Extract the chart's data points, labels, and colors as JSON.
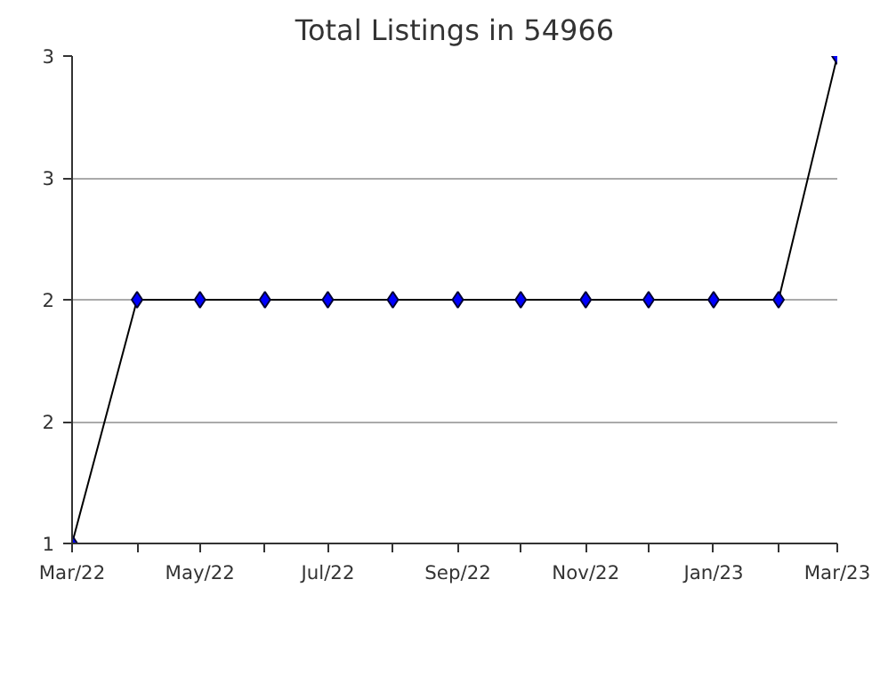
{
  "chart_data": {
    "type": "line",
    "title": "Total Listings in 54966",
    "x": [
      "2022-03",
      "2022-04",
      "2022-05",
      "2022-06",
      "2022-07",
      "2022-08",
      "2022-09",
      "2022-10",
      "2022-11",
      "2022-12",
      "2023-01",
      "2023-02",
      "2023-03"
    ],
    "series": [
      {
        "color": "#0000ff",
        "values": [
          1,
          2,
          2,
          2,
          2,
          2,
          2,
          2,
          2,
          2,
          2,
          2,
          3
        ]
      }
    ],
    "xlim": [
      "2022-03",
      "2023-03"
    ],
    "xticks": [
      {
        "value": "2022-03",
        "label": "Mar/22"
      },
      {
        "value": "2022-04",
        "label": null
      },
      {
        "value": "2022-05",
        "label": "May/22"
      },
      {
        "value": "2022-06",
        "label": null
      },
      {
        "value": "2022-07",
        "label": "Jul/22"
      },
      {
        "value": "2022-08",
        "label": null
      },
      {
        "value": "2022-09",
        "label": "Sep/22"
      },
      {
        "value": "2022-10",
        "label": null
      },
      {
        "value": "2022-11",
        "label": "Nov/22"
      },
      {
        "value": "2022-12",
        "label": null
      },
      {
        "value": "2023-01",
        "label": "Jan/23"
      },
      {
        "value": "2023-02",
        "label": null
      },
      {
        "value": "2023-03",
        "label": "Mar/23"
      }
    ],
    "ylim": [
      1,
      3
    ],
    "yticks": [
      1,
      {
        "value": 1.5,
        "label": "2"
      },
      2,
      {
        "value": 2.5,
        "label": "3"
      },
      3
    ],
    "grid": "y",
    "marker": "diamond",
    "line_style": "solid"
  }
}
